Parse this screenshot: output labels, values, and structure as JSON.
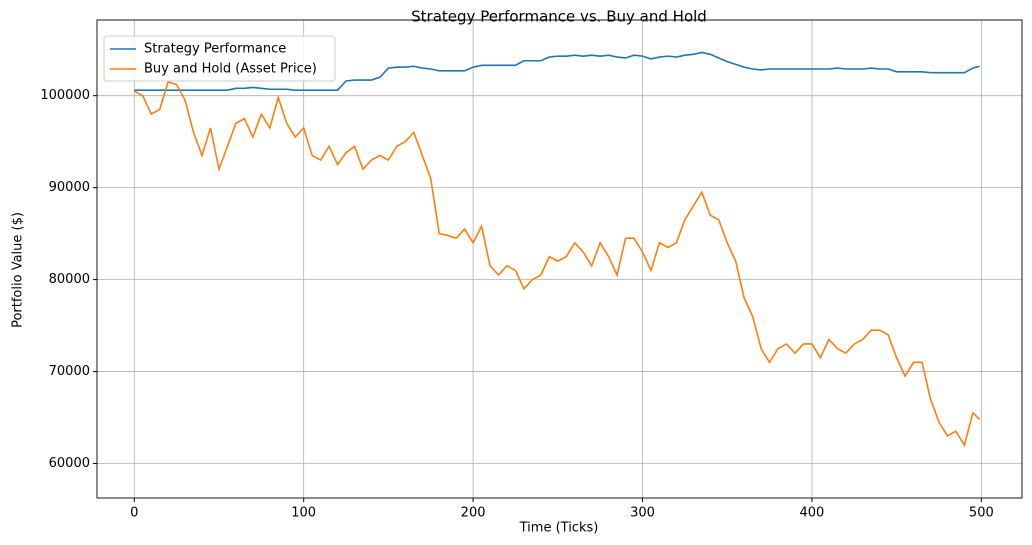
{
  "chart_data": {
    "type": "line",
    "title": "Strategy Performance vs. Buy and Hold",
    "x_label": "Time (Ticks)",
    "y_label": "Portfolio Value ($)",
    "x": [
      0,
      5,
      10,
      15,
      20,
      25,
      30,
      35,
      40,
      45,
      50,
      55,
      60,
      65,
      70,
      75,
      80,
      85,
      90,
      95,
      100,
      105,
      110,
      115,
      120,
      125,
      130,
      135,
      140,
      145,
      150,
      155,
      160,
      165,
      170,
      175,
      180,
      185,
      190,
      195,
      200,
      205,
      210,
      215,
      220,
      225,
      230,
      235,
      240,
      245,
      250,
      255,
      260,
      265,
      270,
      275,
      280,
      285,
      290,
      295,
      300,
      305,
      310,
      315,
      320,
      325,
      330,
      335,
      340,
      345,
      350,
      355,
      360,
      365,
      370,
      375,
      380,
      385,
      390,
      395,
      400,
      405,
      410,
      415,
      420,
      425,
      430,
      435,
      440,
      445,
      450,
      455,
      460,
      465,
      470,
      475,
      480,
      485,
      490,
      495,
      499
    ],
    "series": [
      {
        "name": "Strategy Performance",
        "color": "#1f77b4",
        "values": [
          100600,
          100600,
          100600,
          100600,
          100600,
          100600,
          100600,
          100600,
          100600,
          100600,
          100600,
          100600,
          100800,
          100800,
          100900,
          100800,
          100700,
          100700,
          100700,
          100600,
          100600,
          100600,
          100600,
          100600,
          100600,
          101600,
          101700,
          101700,
          101700,
          102000,
          103000,
          103100,
          103100,
          103200,
          103000,
          102900,
          102700,
          102700,
          102700,
          102700,
          103100,
          103300,
          103300,
          103300,
          103300,
          103300,
          103800,
          103800,
          103800,
          104200,
          104300,
          104300,
          104400,
          104300,
          104400,
          104300,
          104400,
          104200,
          104100,
          104400,
          104300,
          104000,
          104200,
          104300,
          104200,
          104400,
          104500,
          104700,
          104500,
          104100,
          103700,
          103400,
          103100,
          102900,
          102800,
          102900,
          102900,
          102900,
          102900,
          102900,
          102900,
          102900,
          102900,
          103000,
          102900,
          102900,
          102900,
          103000,
          102900,
          102900,
          102600,
          102600,
          102600,
          102600,
          102500,
          102500,
          102500,
          102500,
          102500,
          103000,
          103200
        ]
      },
      {
        "name": "Buy and Hold (Asset Price)",
        "color": "#ff7f0e",
        "values": [
          100500,
          100000,
          98000,
          98500,
          101500,
          101200,
          99500,
          96000,
          93500,
          96500,
          92000,
          94500,
          97000,
          97500,
          95500,
          98000,
          96500,
          99800,
          97000,
          95500,
          96500,
          93500,
          93000,
          94500,
          92500,
          93800,
          94500,
          92000,
          93000,
          93500,
          93000,
          94500,
          95000,
          96000,
          93500,
          91000,
          85000,
          84800,
          84500,
          85500,
          84000,
          85800,
          81500,
          80500,
          81500,
          81000,
          79000,
          80000,
          80500,
          82500,
          82000,
          82500,
          84000,
          83000,
          81500,
          84000,
          82500,
          80500,
          84500,
          84500,
          83000,
          81000,
          84000,
          83500,
          84000,
          86500,
          88000,
          89500,
          87000,
          86500,
          84000,
          82000,
          78000,
          76000,
          72500,
          71000,
          72500,
          73000,
          72000,
          73000,
          73000,
          71500,
          73500,
          72500,
          72000,
          73000,
          73500,
          74500,
          74500,
          74000,
          71500,
          69500,
          71000,
          71000,
          67000,
          64500,
          63000,
          63500,
          62000,
          65500,
          64800
        ]
      }
    ],
    "xlim": [
      -22,
      524
    ],
    "ylim": [
      56250,
      108230
    ],
    "xticks": [
      0,
      100,
      200,
      300,
      400,
      500
    ],
    "yticks": [
      60000,
      70000,
      80000,
      90000,
      100000
    ],
    "grid": true,
    "legend": "upper-left"
  }
}
